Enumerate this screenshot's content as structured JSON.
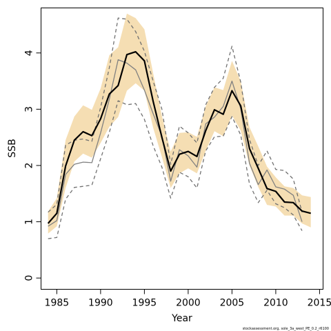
{
  "chart_data": {
    "type": "line",
    "xlabel": "Year",
    "ylabel": "SSB",
    "footnote": "stockassessment.org, sole_3a_west_PE_0.2_r6100",
    "xlim": [
      1983.2,
      2015.4
    ],
    "ylim": [
      -0.2,
      4.8
    ],
    "xticks": [
      1985,
      1990,
      1995,
      2000,
      2005,
      2010,
      2015
    ],
    "yticks": [
      0,
      1,
      2,
      3,
      4
    ],
    "colors": {
      "band": "#f5deb3",
      "estimate": "#000000",
      "comparison": "#808080",
      "comparison_bounds": "#707070"
    },
    "x": [
      1984,
      1985,
      1986,
      1987,
      1988,
      1989,
      1990,
      1991,
      1992,
      1993,
      1994,
      1995,
      1996,
      1997,
      1998,
      1999,
      2000,
      2001,
      2002,
      2003,
      2004,
      2005,
      2006,
      2007,
      2008,
      2009,
      2010,
      2011,
      2012,
      2013,
      2014
    ],
    "series": [
      {
        "role": "estimate",
        "values": [
          0.97,
          1.15,
          1.99,
          2.45,
          2.6,
          2.53,
          2.83,
          3.27,
          3.42,
          3.97,
          4.02,
          3.86,
          3.14,
          2.5,
          1.9,
          2.2,
          2.25,
          2.16,
          2.62,
          2.99,
          2.91,
          3.33,
          3.06,
          2.3,
          1.95,
          1.59,
          1.54,
          1.35,
          1.34,
          1.19,
          1.15
        ]
      },
      {
        "role": "band_upper",
        "values": [
          1.18,
          1.42,
          2.45,
          2.87,
          3.07,
          2.99,
          3.37,
          3.96,
          4.1,
          4.7,
          4.62,
          4.42,
          3.64,
          2.88,
          2.25,
          2.58,
          2.59,
          2.51,
          3.05,
          3.39,
          3.34,
          3.86,
          3.5,
          2.68,
          2.34,
          1.98,
          1.79,
          1.63,
          1.6,
          1.47,
          1.44
        ]
      },
      {
        "role": "band_lower",
        "values": [
          0.79,
          0.92,
          1.6,
          2.07,
          2.21,
          2.14,
          2.4,
          2.69,
          2.86,
          3.33,
          3.46,
          3.33,
          2.67,
          2.15,
          1.6,
          1.86,
          1.95,
          1.86,
          2.26,
          2.61,
          2.52,
          2.89,
          2.62,
          2.0,
          1.62,
          1.3,
          1.27,
          1.11,
          1.11,
          0.97,
          0.9
        ]
      },
      {
        "role": "comparison",
        "values": [
          0.92,
          1.02,
          1.84,
          2.02,
          2.06,
          2.05,
          2.58,
          3.18,
          3.88,
          3.82,
          3.7,
          3.34,
          2.92,
          2.52,
          1.72,
          2.28,
          2.17,
          1.97,
          2.74,
          2.86,
          3.05,
          3.5,
          3.01,
          2.04,
          1.66,
          1.92,
          1.62,
          1.58,
          1.47,
          1.0,
          null
        ]
      },
      {
        "role": "comparison_upper",
        "values": [
          1.17,
          1.31,
          2.36,
          2.45,
          2.47,
          2.43,
          3.03,
          3.74,
          4.62,
          4.6,
          4.38,
          4.03,
          3.5,
          3.0,
          2.02,
          2.7,
          2.58,
          2.4,
          3.08,
          3.39,
          3.55,
          4.12,
          3.48,
          2.46,
          2.0,
          2.26,
          1.93,
          1.91,
          1.76,
          1.17,
          null
        ]
      },
      {
        "role": "comparison_lower",
        "values": [
          0.7,
          0.72,
          1.4,
          1.61,
          1.63,
          1.65,
          2.12,
          2.59,
          3.15,
          3.08,
          3.1,
          2.82,
          2.35,
          1.97,
          1.42,
          1.88,
          1.8,
          1.6,
          2.26,
          2.51,
          2.52,
          2.87,
          2.54,
          1.67,
          1.34,
          1.56,
          1.32,
          1.25,
          1.12,
          0.84,
          null
        ]
      }
    ]
  }
}
